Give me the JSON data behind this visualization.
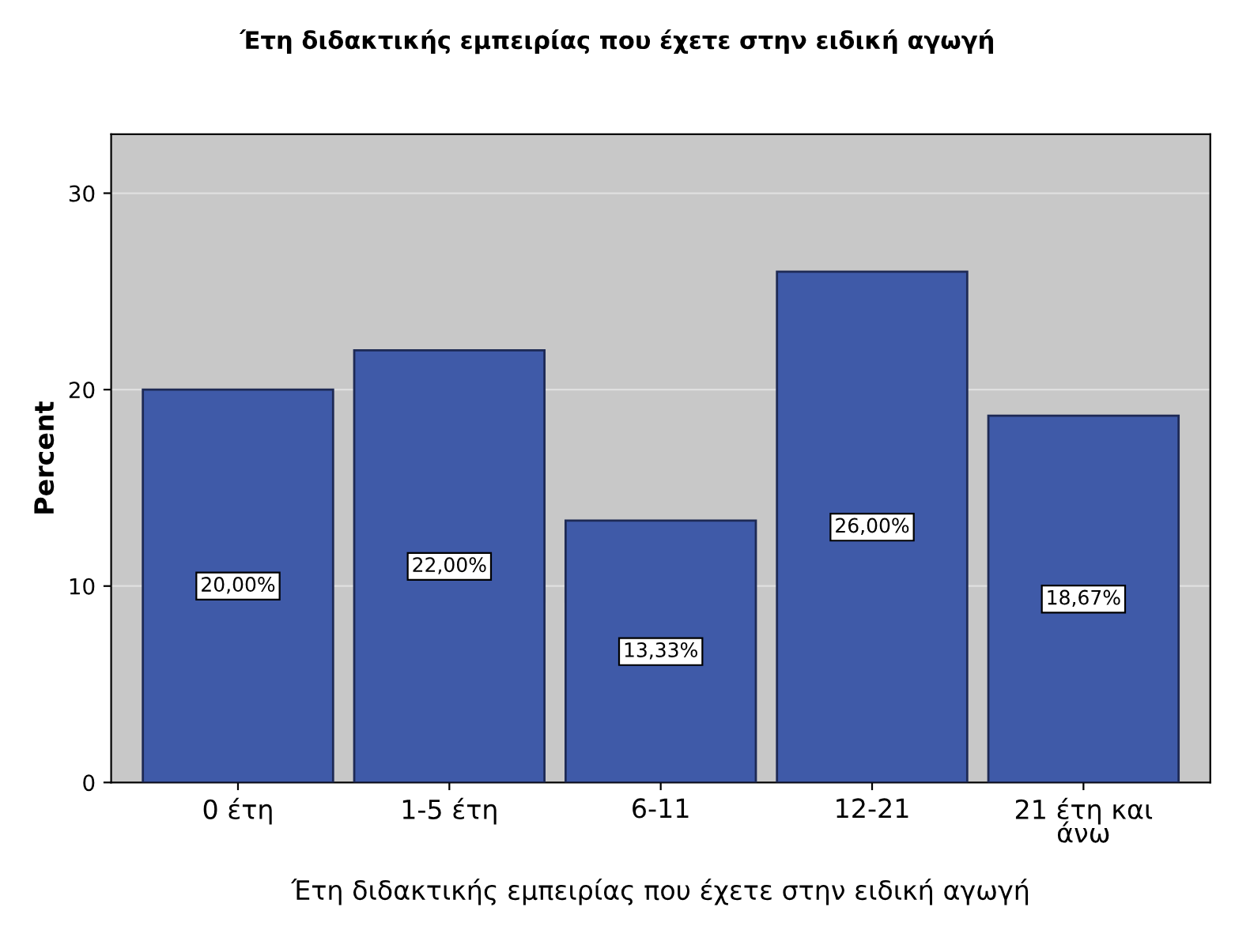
{
  "chart_data": {
    "type": "bar",
    "title": "Έτη διδακτικής εμπειρίας που έχετε στην ειδική αγωγή",
    "xlabel": "Έτη διδακτικής εμπειρίας που έχετε στην ειδική αγωγή",
    "ylabel": "Percent",
    "categories": [
      "0 έτη",
      "1-5 έτη",
      "6-11",
      "12-21",
      "21 έτη και\nάνω"
    ],
    "values": [
      20.0,
      22.0,
      13.33,
      26.0,
      18.67
    ],
    "value_labels": [
      "20,00%",
      "22,00%",
      "13,33%",
      "26,00%",
      "18,67%"
    ],
    "color": "#3f5aa8",
    "ylim": [
      0,
      33
    ],
    "yticks": [
      0,
      10,
      20,
      30
    ],
    "grid": "y"
  }
}
